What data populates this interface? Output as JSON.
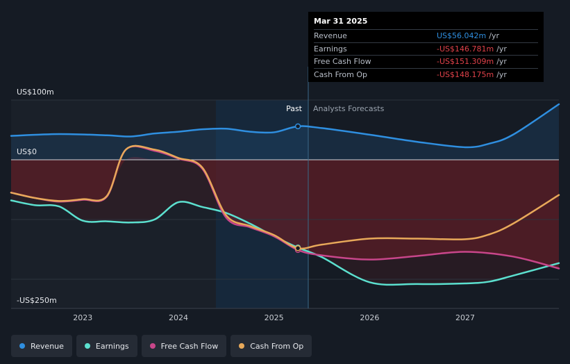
{
  "colors": {
    "revenue": "#2f8fe0",
    "earnings": "#5ce0cf",
    "free_cash_flow": "#c8468a",
    "cash_from_op": "#e8a95a",
    "background": "#151b24",
    "past_shade": "#1b2230",
    "forecast_highlight": "#17304a",
    "negative_fill": "#8c2a2e"
  },
  "tooltip": {
    "date": "Mar 31 2025",
    "rows": [
      {
        "label": "Revenue",
        "value": "US$56.042m",
        "unit": "/yr",
        "color": "#2f8fe0"
      },
      {
        "label": "Earnings",
        "value": "-US$146.781m",
        "unit": "/yr",
        "color": "#e2424a"
      },
      {
        "label": "Free Cash Flow",
        "value": "-US$151.309m",
        "unit": "/yr",
        "color": "#e2424a"
      },
      {
        "label": "Cash From Op",
        "value": "-US$148.175m",
        "unit": "/yr",
        "color": "#e2424a"
      }
    ]
  },
  "legend": [
    {
      "label": "Revenue",
      "color": "#2f8fe0"
    },
    {
      "label": "Earnings",
      "color": "#5ce0cf"
    },
    {
      "label": "Free Cash Flow",
      "color": "#c8468a"
    },
    {
      "label": "Cash From Op",
      "color": "#e8a95a"
    }
  ],
  "chart_data": {
    "type": "line",
    "past_label": "Past",
    "forecast_label": "Analysts Forecasts",
    "y_tick_labels": [
      {
        "value": 100,
        "label": "US$100m"
      },
      {
        "value": 0,
        "label": "US$0"
      },
      {
        "value": -250,
        "label": "-US$250m"
      }
    ],
    "ylim": [
      -250,
      100
    ],
    "xlim": [
      2022.25,
      2027.98
    ],
    "x_ticks": [
      {
        "value": 2023,
        "label": "2023"
      },
      {
        "value": 2024,
        "label": "2024"
      },
      {
        "value": 2025,
        "label": "2025"
      },
      {
        "value": 2026,
        "label": "2026"
      },
      {
        "value": 2027,
        "label": "2027"
      }
    ],
    "past_end": 2025.25,
    "highlight_start": 2024.25,
    "series": [
      {
        "name": "Revenue",
        "color": "#2f8fe0",
        "points": [
          [
            2022.25,
            40
          ],
          [
            2022.75,
            43
          ],
          [
            2023.25,
            41
          ],
          [
            2023.5,
            39
          ],
          [
            2023.75,
            44
          ],
          [
            2024.0,
            47
          ],
          [
            2024.25,
            51
          ],
          [
            2024.5,
            52
          ],
          [
            2024.75,
            47
          ],
          [
            2025.0,
            46
          ],
          [
            2025.25,
            56
          ],
          [
            2025.5,
            53
          ],
          [
            2026.0,
            42
          ],
          [
            2026.5,
            30
          ],
          [
            2027.0,
            21
          ],
          [
            2027.25,
            27
          ],
          [
            2027.5,
            42
          ],
          [
            2027.98,
            93
          ]
        ]
      },
      {
        "name": "Earnings",
        "color": "#5ce0cf",
        "points": [
          [
            2022.25,
            -68
          ],
          [
            2022.5,
            -76
          ],
          [
            2022.75,
            -78
          ],
          [
            2023.0,
            -102
          ],
          [
            2023.25,
            -103
          ],
          [
            2023.5,
            -105
          ],
          [
            2023.75,
            -100
          ],
          [
            2024.0,
            -71
          ],
          [
            2024.25,
            -79
          ],
          [
            2024.5,
            -89
          ],
          [
            2024.75,
            -107
          ],
          [
            2025.0,
            -128
          ],
          [
            2025.25,
            -147
          ],
          [
            2025.5,
            -163
          ],
          [
            2026.0,
            -205
          ],
          [
            2026.5,
            -208
          ],
          [
            2027.0,
            -207
          ],
          [
            2027.25,
            -204
          ],
          [
            2027.5,
            -194
          ],
          [
            2027.98,
            -173
          ]
        ]
      },
      {
        "name": "Free Cash Flow",
        "color": "#c8468a",
        "points": [
          [
            2022.25,
            -55
          ],
          [
            2022.5,
            -64
          ],
          [
            2022.75,
            -70
          ],
          [
            2023.0,
            -67
          ],
          [
            2023.25,
            -62
          ],
          [
            2023.45,
            17
          ],
          [
            2023.75,
            15
          ],
          [
            2024.0,
            2
          ],
          [
            2024.25,
            -15
          ],
          [
            2024.5,
            -97
          ],
          [
            2024.75,
            -113
          ],
          [
            2025.0,
            -128
          ],
          [
            2025.25,
            -151
          ],
          [
            2025.5,
            -160
          ],
          [
            2026.0,
            -167
          ],
          [
            2026.5,
            -161
          ],
          [
            2027.0,
            -154
          ],
          [
            2027.5,
            -162
          ],
          [
            2027.98,
            -182
          ]
        ]
      },
      {
        "name": "Cash From Op",
        "color": "#e8a95a",
        "points": [
          [
            2022.25,
            -55
          ],
          [
            2022.5,
            -64
          ],
          [
            2022.75,
            -69
          ],
          [
            2023.0,
            -66
          ],
          [
            2023.25,
            -61
          ],
          [
            2023.45,
            17
          ],
          [
            2023.75,
            17
          ],
          [
            2024.0,
            3
          ],
          [
            2024.25,
            -13
          ],
          [
            2024.5,
            -93
          ],
          [
            2024.75,
            -111
          ],
          [
            2025.0,
            -126
          ],
          [
            2025.25,
            -148
          ],
          [
            2025.5,
            -142
          ],
          [
            2026.0,
            -132
          ],
          [
            2026.5,
            -132
          ],
          [
            2027.0,
            -133
          ],
          [
            2027.25,
            -125
          ],
          [
            2027.5,
            -107
          ],
          [
            2027.98,
            -59
          ]
        ]
      }
    ]
  }
}
